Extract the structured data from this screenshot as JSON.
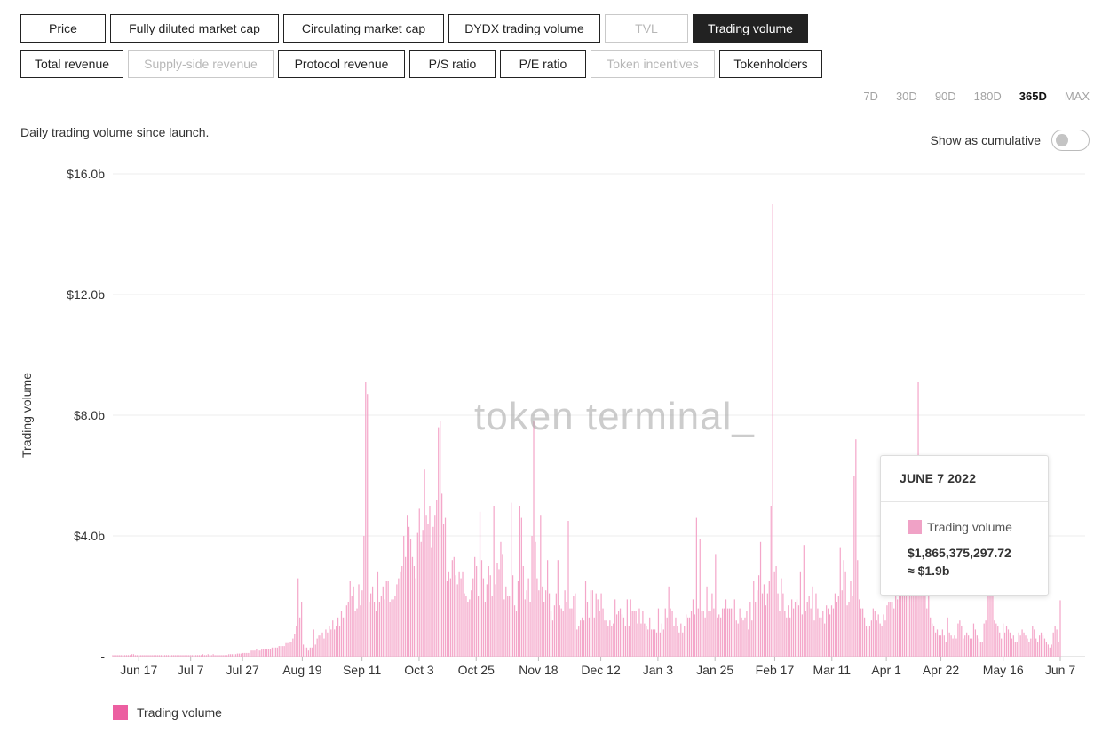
{
  "metric_buttons_row1": [
    {
      "label": "Price",
      "state": "normal"
    },
    {
      "label": "Fully diluted market cap",
      "state": "normal"
    },
    {
      "label": "Circulating market cap",
      "state": "normal"
    },
    {
      "label": "DYDX trading volume",
      "state": "normal"
    },
    {
      "label": "TVL",
      "state": "disabled"
    },
    {
      "label": "Trading volume",
      "state": "active"
    }
  ],
  "metric_buttons_row2": [
    {
      "label": "Total revenue",
      "state": "normal"
    },
    {
      "label": "Supply-side revenue",
      "state": "disabled"
    },
    {
      "label": "Protocol revenue",
      "state": "normal"
    },
    {
      "label": "P/S ratio",
      "state": "normal"
    },
    {
      "label": "P/E ratio",
      "state": "normal"
    },
    {
      "label": "Token incentives",
      "state": "disabled"
    },
    {
      "label": "Tokenholders",
      "state": "normal"
    }
  ],
  "time_ranges": [
    {
      "label": "7D",
      "active": false
    },
    {
      "label": "30D",
      "active": false
    },
    {
      "label": "90D",
      "active": false
    },
    {
      "label": "180D",
      "active": false
    },
    {
      "label": "365D",
      "active": true
    },
    {
      "label": "MAX",
      "active": false
    }
  ],
  "description": "Daily trading volume since launch.",
  "cumulative_toggle": {
    "label": "Show as cumulative",
    "on": false
  },
  "watermark": "token terminal_",
  "tooltip": {
    "date": "JUNE 7 2022",
    "series": "Trading volume",
    "value": "$1,865,375,297.72",
    "approx": "≈ $1.9b"
  },
  "colors": {
    "bar": "#f4a6c9",
    "legend_swatch": "#ec5fa1",
    "tooltip_swatch": "#f0a2c6",
    "grid": "#ececec",
    "active_button": "#222222"
  },
  "chart_data": {
    "type": "bar",
    "title": "",
    "xlabel": "",
    "ylabel": "Trading volume",
    "y_unit": "billion USD",
    "ylim": [
      0,
      16
    ],
    "yticks": [
      0,
      4,
      8,
      12,
      16
    ],
    "ytick_labels": [
      "-",
      "$4.0b",
      "$8.0b",
      "$12.0b",
      "$16.0b"
    ],
    "grid": true,
    "legend_position": "bottom-left",
    "x_start": "2021-06-07",
    "x_end": "2022-06-07",
    "xtick_labels": [
      "Jun 17",
      "Jul 7",
      "Jul 27",
      "Aug 19",
      "Sep 11",
      "Oct 3",
      "Oct 25",
      "Nov 18",
      "Dec 12",
      "Jan 3",
      "Jan 25",
      "Feb 17",
      "Mar 11",
      "Apr 1",
      "Apr 22",
      "May 16",
      "Jun 7"
    ],
    "xtick_dates": [
      "2021-06-17",
      "2021-07-07",
      "2021-07-27",
      "2021-08-19",
      "2021-09-11",
      "2021-10-03",
      "2021-10-25",
      "2021-11-18",
      "2021-12-12",
      "2022-01-03",
      "2022-01-25",
      "2022-02-17",
      "2022-03-11",
      "2022-04-01",
      "2022-04-22",
      "2022-05-16",
      "2022-06-07"
    ],
    "series": [
      {
        "name": "Trading volume",
        "values": [
          0.05,
          0.05,
          0.05,
          0.05,
          0.05,
          0.05,
          0.05,
          0.05,
          0.05,
          0.05,
          0.05,
          0.08,
          0.08,
          0.05,
          0.05,
          0.05,
          0.05,
          0.05,
          0.05,
          0.05,
          0.05,
          0.05,
          0.05,
          0.05,
          0.05,
          0.05,
          0.05,
          0.05,
          0.05,
          0.05,
          0.05,
          0.05,
          0.05,
          0.05,
          0.05,
          0.05,
          0.05,
          0.05,
          0.05,
          0.05,
          0.05,
          0.05,
          0.05,
          0.05,
          0.05,
          0.05,
          0.05,
          0.05,
          0.05,
          0.05,
          0.05,
          0.05,
          0.08,
          0.05,
          0.05,
          0.08,
          0.05,
          0.05,
          0.08,
          0.05,
          0.05,
          0.05,
          0.05,
          0.05,
          0.05,
          0.05,
          0.05,
          0.08,
          0.08,
          0.08,
          0.08,
          0.08,
          0.1,
          0.1,
          0.1,
          0.12,
          0.12,
          0.12,
          0.12,
          0.12,
          0.2,
          0.2,
          0.2,
          0.25,
          0.2,
          0.2,
          0.25,
          0.25,
          0.25,
          0.25,
          0.25,
          0.25,
          0.3,
          0.3,
          0.3,
          0.3,
          0.35,
          0.35,
          0.35,
          0.35,
          0.45,
          0.45,
          0.5,
          0.5,
          0.6,
          0.75,
          1.0,
          2.6,
          1.3,
          1.8,
          0.4,
          0.3,
          0.3,
          0.2,
          0.3,
          0.3,
          0.9,
          0.4,
          0.6,
          0.7,
          0.7,
          0.8,
          0.6,
          0.9,
          0.8,
          1.0,
          0.9,
          1.2,
          0.9,
          1.0,
          1.3,
          1.0,
          1.5,
          1.3,
          1.3,
          1.7,
          1.8,
          2.5,
          2.0,
          2.3,
          1.5,
          1.6,
          2.4,
          1.7,
          2.2,
          4.0,
          9.1,
          8.7,
          1.8,
          2.1,
          2.3,
          1.8,
          1.5,
          2.8,
          1.8,
          2.0,
          2.3,
          1.9,
          2.5,
          2.5,
          1.8,
          1.9,
          1.9,
          2.0,
          2.4,
          2.6,
          2.8,
          3.0,
          4.0,
          3.3,
          4.7,
          4.3,
          3.9,
          3.3,
          3.0,
          2.6,
          4.1,
          4.9,
          3.8,
          4.2,
          6.2,
          4.7,
          4.4,
          5.0,
          3.6,
          4.3,
          4.7,
          5.2,
          7.6,
          7.8,
          5.4,
          4.4,
          4.6,
          2.5,
          2.8,
          2.6,
          3.2,
          3.3,
          2.7,
          2.4,
          2.8,
          2.6,
          2.8,
          2.1,
          2.0,
          1.8,
          1.9,
          2.2,
          2.6,
          3.3,
          3.0,
          2.0,
          4.8,
          3.2,
          2.6,
          1.8,
          2.4,
          3.0,
          2.7,
          2.0,
          5.0,
          2.4,
          3.1,
          2.9,
          3.8,
          3.4,
          1.9,
          2.3,
          2.0,
          2.0,
          5.1,
          2.7,
          1.7,
          1.5,
          2.5,
          5.0,
          4.6,
          3.0,
          1.9,
          2.2,
          2.6,
          1.8,
          4.0,
          7.8,
          3.8,
          2.6,
          2.2,
          4.7,
          2.3,
          1.8,
          2.2,
          3.2,
          2.1,
          1.5,
          1.2,
          1.7,
          2.1,
          3.2,
          1.7,
          1.6,
          1.5,
          2.2,
          1.8,
          4.5,
          1.6,
          1.6,
          2.0,
          2.1,
          0.9,
          1.0,
          1.2,
          1.3,
          1.2,
          2.5,
          1.8,
          1.3,
          2.2,
          2.2,
          1.3,
          2.1,
          1.9,
          1.5,
          2.1,
          1.6,
          1.2,
          1.2,
          1.0,
          1.2,
          1.0,
          1.1,
          1.9,
          1.4,
          1.5,
          1.6,
          1.4,
          1.3,
          1.0,
          1.9,
          1.0,
          1.9,
          1.5,
          1.5,
          1.5,
          1.1,
          1.6,
          1.1,
          1.5,
          1.1,
          1.0,
          0.9,
          1.3,
          0.9,
          0.9,
          0.9,
          0.8,
          1.6,
          0.8,
          1.1,
          0.9,
          1.6,
          1.3,
          2.3,
          1.6,
          1.5,
          1.0,
          1.3,
          1.0,
          0.8,
          1.1,
          0.8,
          1.0,
          1.4,
          1.3,
          1.3,
          1.5,
          1.9,
          1.4,
          4.6,
          1.6,
          3.9,
          1.5,
          1.5,
          1.3,
          2.3,
          1.5,
          1.5,
          2.1,
          1.6,
          3.4,
          1.3,
          1.4,
          1.3,
          1.6,
          1.6,
          1.9,
          1.6,
          1.6,
          1.6,
          1.6,
          1.9,
          1.2,
          1.1,
          1.6,
          1.3,
          1.2,
          1.3,
          1.5,
          0.9,
          1.8,
          1.2,
          2.5,
          1.8,
          2.2,
          2.7,
          3.8,
          2.1,
          2.4,
          1.7,
          2.1,
          2.5,
          5.0,
          15.0,
          2.8,
          3.0,
          2.1,
          1.5,
          2.6,
          2.1,
          1.5,
          1.3,
          1.7,
          1.3,
          1.9,
          1.6,
          1.8,
          1.9,
          1.7,
          2.8,
          1.4,
          3.7,
          1.5,
          1.8,
          2.0,
          1.6,
          2.3,
          1.2,
          2.1,
          1.6,
          1.3,
          1.3,
          1.5,
          1.1,
          1.7,
          1.6,
          1.4,
          1.7,
          1.6,
          2.1,
          1.8,
          2.0,
          3.6,
          2.2,
          3.2,
          2.8,
          1.7,
          1.8,
          2.5,
          2.0,
          6.0,
          7.2,
          3.2,
          1.9,
          1.6,
          1.6,
          1.3,
          1.0,
          0.9,
          1.0,
          1.2,
          1.6,
          1.5,
          1.2,
          1.4,
          1.1,
          1.0,
          1.4,
          1.2,
          1.7,
          1.8,
          1.8,
          1.8,
          1.6,
          2.0,
          1.9,
          2.0,
          4.0,
          4.0,
          2.2,
          3.1,
          2.8,
          3.8,
          3.6,
          3.0,
          2.0,
          3.0,
          9.1,
          2.9,
          3.0,
          2.6,
          2.0,
          1.6,
          2.3,
          1.3,
          1.1,
          1.0,
          0.8,
          0.9,
          0.7,
          0.7,
          0.9,
          0.7,
          0.5,
          1.3,
          0.8,
          0.7,
          0.6,
          0.7,
          0.6,
          1.1,
          1.2,
          1.0,
          0.6,
          0.7,
          0.8,
          0.7,
          0.6,
          0.6,
          1.1,
          0.9,
          0.7,
          0.6,
          0.5,
          0.5,
          1.1,
          1.2,
          2.2,
          3.5,
          4.2,
          2.0,
          1.2,
          1.1,
          1.0,
          0.8,
          0.6,
          1.1,
          0.8,
          1.0,
          0.9,
          0.8,
          0.6,
          0.7,
          0.5,
          0.5,
          0.8,
          0.7,
          0.9,
          0.8,
          0.7,
          0.6,
          0.5,
          0.6,
          1.0,
          0.9,
          0.6,
          0.5,
          0.7,
          0.8,
          0.7,
          0.6,
          0.5,
          0.4,
          0.3,
          0.4,
          0.8,
          1.0,
          0.9,
          0.5,
          1.87
        ]
      }
    ]
  }
}
